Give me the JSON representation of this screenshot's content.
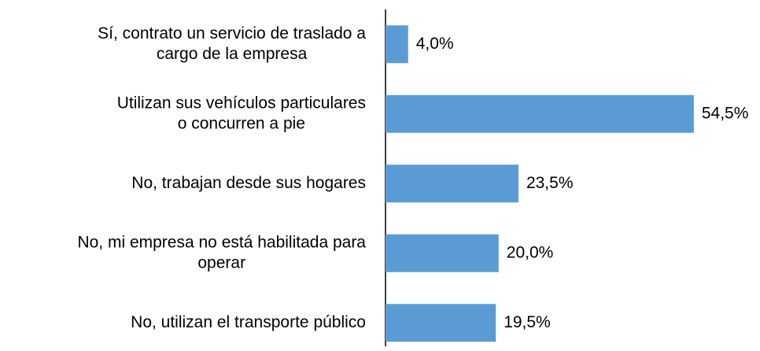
{
  "chart_data": {
    "type": "bar",
    "orientation": "horizontal",
    "categories": [
      [
        "Sí, contrato un servicio de traslado a",
        "cargo de la empresa"
      ],
      [
        "Utilizan sus vehículos particulares",
        "o concurren a pie"
      ],
      [
        "No, trabajan desde sus hogares"
      ],
      [
        "No, mi empresa no está habilitada para",
        "operar"
      ],
      [
        "No, utilizan el transporte público"
      ]
    ],
    "values": [
      4.0,
      54.5,
      23.5,
      20.0,
      19.5
    ],
    "value_labels": [
      "4,0%",
      "54,5%",
      "23,5%",
      "20,0%",
      "19,5%"
    ],
    "color": "#5b9bd5"
  }
}
